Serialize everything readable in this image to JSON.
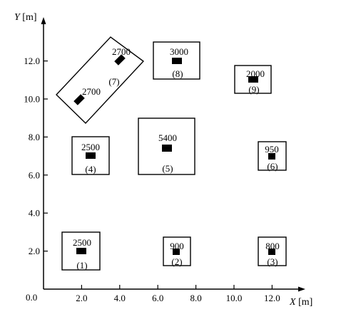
{
  "axes": {
    "x_title_var": "X",
    "x_title_unit": " [m]",
    "y_title_var": "Y",
    "y_title_unit": " [m]",
    "origin_label": "0.0",
    "x_ticks": [
      {
        "value": 2,
        "label": "2.0"
      },
      {
        "value": 4,
        "label": "4.0"
      },
      {
        "value": 6,
        "label": "6.0"
      },
      {
        "value": 8,
        "label": "8.0"
      },
      {
        "value": 10,
        "label": "10.0"
      },
      {
        "value": 12,
        "label": "12.0"
      }
    ],
    "y_ticks": [
      {
        "value": 2,
        "label": "2.0"
      },
      {
        "value": 4,
        "label": "4.0"
      },
      {
        "value": 6,
        "label": "6.0"
      },
      {
        "value": 8,
        "label": "8.0"
      },
      {
        "value": 10,
        "label": "10.0"
      },
      {
        "value": 12,
        "label": "12.0"
      }
    ]
  },
  "rooms": [
    {
      "index": "(1)",
      "sources": [
        {
          "x": 2.0,
          "y": 2.0,
          "value": "2500"
        }
      ]
    },
    {
      "index": "(2)",
      "sources": [
        {
          "x": 7.0,
          "y": 2.0,
          "value": "900"
        }
      ]
    },
    {
      "index": "(3)",
      "sources": [
        {
          "x": 12.0,
          "y": 2.0,
          "value": "800"
        }
      ]
    },
    {
      "index": "(4)",
      "sources": [
        {
          "x": 2.5,
          "y": 7.0,
          "value": "2500"
        }
      ]
    },
    {
      "index": "(5)",
      "sources": [
        {
          "x": 6.5,
          "y": 7.4,
          "value": "5400"
        }
      ]
    },
    {
      "index": "(6)",
      "sources": [
        {
          "x": 12.0,
          "y": 7.0,
          "value": "950"
        }
      ]
    },
    {
      "index": "(7)",
      "sources": [
        {
          "x": 4.0,
          "y": 12.0,
          "value": "2700"
        },
        {
          "x": 1.9,
          "y": 9.9,
          "value": "2700"
        }
      ]
    },
    {
      "index": "(8)",
      "sources": [
        {
          "x": 7.0,
          "y": 12.0,
          "value": "3000"
        }
      ]
    },
    {
      "index": "(9)",
      "sources": [
        {
          "x": 11.0,
          "y": 11.0,
          "value": "2000"
        }
      ]
    }
  ]
}
